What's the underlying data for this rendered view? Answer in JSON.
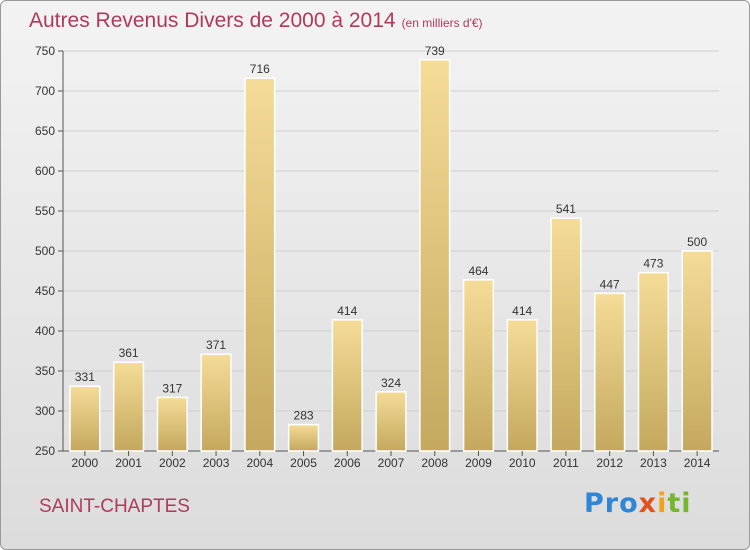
{
  "title": "Autres Revenus Divers de 2000 à 2014",
  "subtitle": "(en milliers d'€)",
  "commune": "SAINT-CHAPTES",
  "logo": {
    "parts": [
      "Pro",
      "x",
      "i",
      "ti"
    ],
    "colors": [
      "#2d86d6",
      "#e0531c",
      "#f2a214",
      "#74b72e"
    ]
  },
  "colors": {
    "title": "#b03a5b",
    "bar_light": "#f5dc97",
    "bar_dark": "#c4a85e"
  },
  "chart_data": {
    "type": "bar",
    "title": "Autres Revenus Divers de 2000 à 2014",
    "xlabel": "",
    "ylabel": "",
    "categories": [
      "2000",
      "2001",
      "2002",
      "2003",
      "2004",
      "2005",
      "2006",
      "2007",
      "2008",
      "2009",
      "2010",
      "2011",
      "2012",
      "2013",
      "2014"
    ],
    "values": [
      331,
      361,
      317,
      371,
      716,
      283,
      414,
      324,
      739,
      464,
      414,
      541,
      447,
      473,
      500
    ],
    "ylim": [
      250,
      750
    ],
    "yticks": [
      250,
      300,
      350,
      400,
      450,
      500,
      550,
      600,
      650,
      700,
      750
    ],
    "grid": true,
    "data_labels": true
  }
}
